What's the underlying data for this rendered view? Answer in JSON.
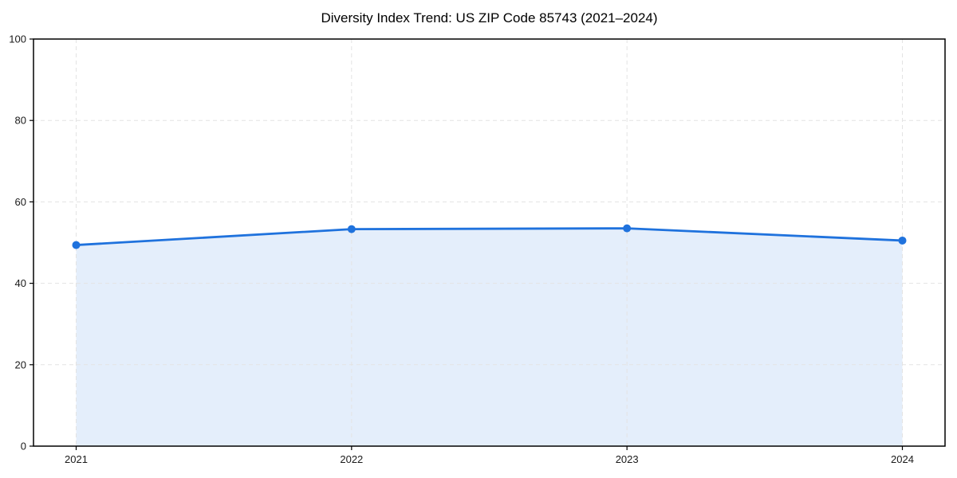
{
  "chart_data": {
    "type": "line",
    "title": "Diversity Index Trend: US ZIP Code 85743 (2021–2024)",
    "categories": [
      "2021",
      "2022",
      "2023",
      "2024"
    ],
    "series": [
      {
        "name": "Diversity Index",
        "values": [
          49.4,
          53.3,
          53.5,
          50.5
        ]
      }
    ],
    "xlabel": "",
    "ylabel": "",
    "ylim": [
      0,
      100
    ],
    "y_ticks": [
      0,
      20,
      40,
      60,
      80,
      100
    ],
    "grid": true,
    "grid_style": "dashed",
    "legend": "none",
    "area_fill": true,
    "markers": true,
    "colors": {
      "line": "#1f72dd",
      "marker": "#1f72dd",
      "area": "rgba(31, 114, 221, 0.12)",
      "grid": "#e3e3e3",
      "spine": "#000000",
      "tick_text": "#1a1a1a",
      "background": "#ffffff"
    }
  }
}
